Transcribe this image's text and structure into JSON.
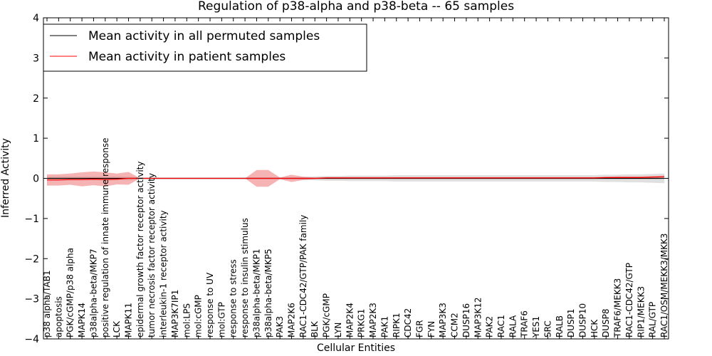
{
  "chart_data": {
    "type": "line",
    "title": "Regulation of p38-alpha and p38-beta -- 65 samples",
    "xlabel": "Cellular Entities",
    "ylabel": "Inferred Activity",
    "ylim": [
      -4,
      4
    ],
    "yticks": [
      "−4",
      "−3",
      "−2",
      "−1",
      "0",
      "1",
      "2",
      "3",
      "4"
    ],
    "legend_position": "top-left",
    "categories": [
      "p38 alpha/TAB1",
      "apoptosis",
      "PGK/cGMP/p38 alpha",
      "MAPK14",
      "p38alpha-beta/MKP7",
      "positive regulation of innate immune response",
      "LCK",
      "MAPK11",
      "epidermal growth factor receptor activity",
      "tumor necrosis factor receptor activity",
      "interleukin-1 receptor activity",
      "MAP3K7IP1",
      "mol:LPS",
      "mol:cGMP",
      "response to UV",
      "mol:GTP",
      "response to stress",
      "response to insulin stimulus",
      "p38alpha-beta/MKP1",
      "p38alpha-beta/MKP5",
      "PAK3",
      "MAP2K6",
      "RAC1-CDC42/GTP/PAK family",
      "BLK",
      "PGK/cGMP",
      "LYN",
      "MAP2K4",
      "PRKG1",
      "MAP2K3",
      "PAK1",
      "RIPK1",
      "CDC42",
      "FGR",
      "FYN",
      "MAP3K3",
      "CCM2",
      "DUSP16",
      "MAP3K12",
      "PAK2",
      "RAC1",
      "RALA",
      "TRAF6",
      "YES1",
      "SRC",
      "RALB",
      "DUSP1",
      "DUSP10",
      "HCK",
      "DUSP8",
      "TRAF6/MEKK3",
      "RAC1-CDC42/GTP",
      "RIP1/MEKK3",
      "RAL/GTP",
      "RAC1/OSM/MEKK3/MKK3"
    ],
    "series": [
      {
        "name": "Mean activity in all permuted samples",
        "color": "#000000",
        "band_color": "#bbbbbb",
        "values": [
          0.0,
          0.0,
          0.0,
          0.0,
          0.0,
          0.0,
          0.0,
          0.0,
          0.0,
          0.0,
          0.0,
          0.0,
          0.0,
          0.0,
          0.0,
          0.0,
          0.0,
          0.0,
          0.0,
          0.0,
          0.0,
          0.0,
          0.0,
          0.0,
          0.0,
          0.0,
          0.0,
          0.0,
          0.0,
          0.0,
          0.0,
          0.0,
          0.0,
          0.0,
          0.0,
          0.0,
          0.0,
          0.0,
          0.0,
          0.0,
          0.0,
          0.0,
          0.0,
          0.0,
          0.0,
          0.0,
          0.0,
          0.0,
          0.0,
          0.0,
          0.0,
          0.0,
          0.0,
          0.0
        ],
        "band_upper": [
          0.05,
          0.05,
          0.05,
          0.05,
          0.05,
          0.05,
          0.05,
          0.05,
          0.02,
          0.02,
          0.02,
          0.02,
          0.02,
          0.02,
          0.02,
          0.02,
          0.02,
          0.02,
          0.02,
          0.02,
          0.02,
          0.02,
          0.04,
          0.05,
          0.06,
          0.06,
          0.07,
          0.07,
          0.07,
          0.07,
          0.08,
          0.08,
          0.08,
          0.08,
          0.08,
          0.08,
          0.08,
          0.08,
          0.08,
          0.08,
          0.08,
          0.08,
          0.08,
          0.08,
          0.08,
          0.08,
          0.08,
          0.08,
          0.09,
          0.09,
          0.1,
          0.1,
          0.11,
          0.12
        ],
        "band_lower": [
          -0.05,
          -0.05,
          -0.05,
          -0.05,
          -0.05,
          -0.05,
          -0.05,
          -0.05,
          -0.02,
          -0.02,
          -0.02,
          -0.02,
          -0.02,
          -0.02,
          -0.02,
          -0.02,
          -0.02,
          -0.02,
          -0.02,
          -0.02,
          -0.02,
          -0.02,
          -0.04,
          -0.05,
          -0.06,
          -0.06,
          -0.07,
          -0.07,
          -0.07,
          -0.07,
          -0.08,
          -0.08,
          -0.08,
          -0.08,
          -0.08,
          -0.08,
          -0.08,
          -0.08,
          -0.08,
          -0.08,
          -0.08,
          -0.08,
          -0.08,
          -0.08,
          -0.08,
          -0.08,
          -0.08,
          -0.08,
          -0.09,
          -0.09,
          -0.1,
          -0.1,
          -0.11,
          -0.12
        ]
      },
      {
        "name": "Mean activity in patient samples",
        "color": "#ff0000",
        "band_color": "#f08080",
        "values": [
          -0.04,
          -0.04,
          -0.03,
          -0.03,
          -0.02,
          -0.03,
          -0.02,
          0.0,
          0.0,
          0.0,
          0.0,
          0.0,
          0.0,
          0.0,
          0.0,
          0.0,
          0.0,
          0.0,
          0.0,
          0.0,
          0.0,
          0.0,
          0.0,
          0.0,
          0.01,
          0.01,
          0.01,
          0.01,
          0.01,
          0.01,
          0.01,
          0.01,
          0.01,
          0.01,
          0.01,
          0.01,
          0.01,
          0.01,
          0.01,
          0.01,
          0.01,
          0.01,
          0.01,
          0.01,
          0.01,
          0.01,
          0.01,
          0.01,
          0.02,
          0.02,
          0.02,
          0.02,
          0.03,
          0.04
        ],
        "band_upper": [
          0.1,
          0.1,
          0.12,
          0.15,
          0.17,
          0.15,
          0.12,
          0.16,
          0.0,
          0.0,
          0.0,
          0.0,
          0.0,
          0.0,
          0.0,
          0.0,
          0.0,
          0.0,
          0.21,
          0.21,
          0.02,
          0.09,
          0.04,
          0.02,
          0.03,
          0.03,
          0.03,
          0.03,
          0.03,
          0.03,
          0.03,
          0.03,
          0.03,
          0.03,
          0.03,
          0.03,
          0.03,
          0.03,
          0.03,
          0.03,
          0.03,
          0.03,
          0.03,
          0.03,
          0.03,
          0.03,
          0.03,
          0.03,
          0.04,
          0.05,
          0.05,
          0.05,
          0.06,
          0.07
        ],
        "band_lower": [
          -0.18,
          -0.18,
          -0.16,
          -0.2,
          -0.17,
          -0.2,
          -0.15,
          -0.16,
          0.0,
          0.0,
          0.0,
          0.0,
          0.0,
          0.0,
          0.0,
          0.0,
          0.0,
          0.0,
          -0.21,
          -0.21,
          -0.02,
          -0.09,
          -0.04,
          -0.02,
          -0.01,
          -0.01,
          -0.01,
          -0.01,
          -0.01,
          -0.01,
          -0.01,
          -0.01,
          -0.01,
          -0.01,
          -0.01,
          -0.01,
          -0.01,
          -0.01,
          -0.01,
          -0.01,
          -0.01,
          -0.01,
          -0.01,
          -0.01,
          -0.01,
          -0.01,
          -0.01,
          -0.01,
          0.0,
          0.0,
          0.0,
          0.0,
          0.01,
          0.01
        ]
      }
    ],
    "grid": false
  }
}
